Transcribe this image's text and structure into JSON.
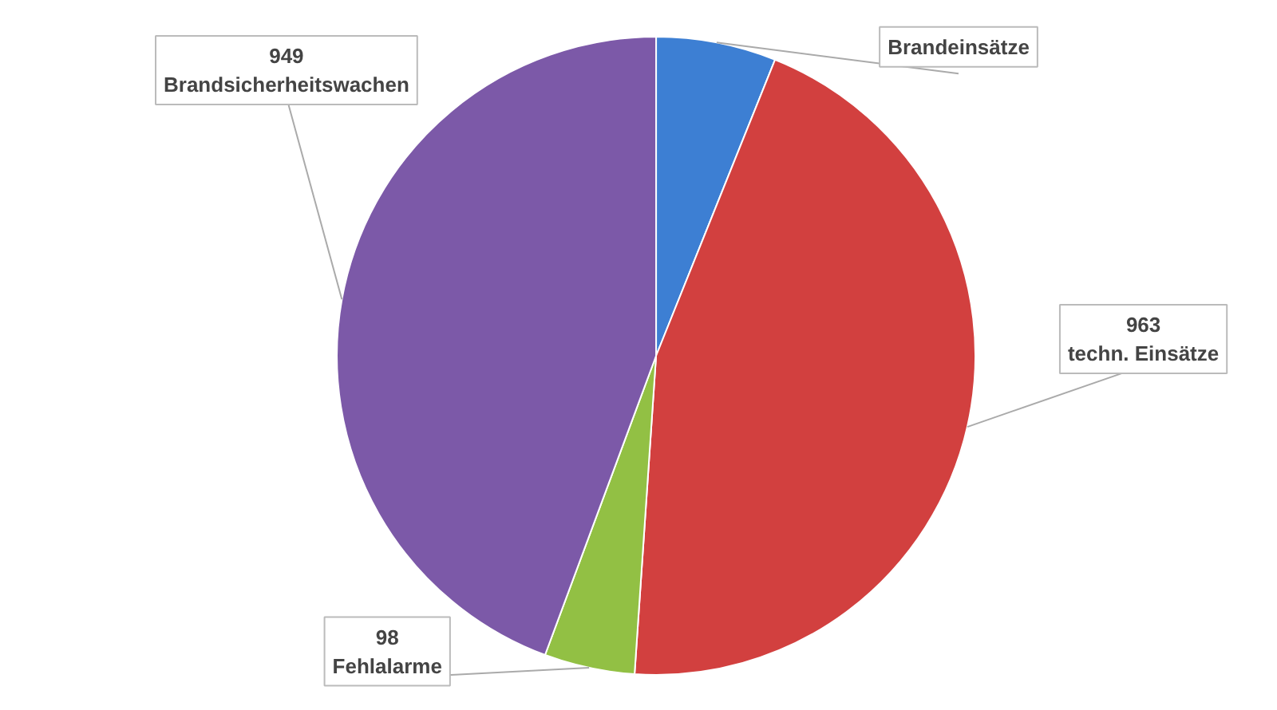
{
  "chart_data": {
    "type": "pie",
    "categories": [
      "Brandeinsätze",
      "techn. Einsätze",
      "Fehlalarme",
      "Brandsicherheitswachen"
    ],
    "values": [
      130,
      963,
      98,
      949
    ],
    "colors": [
      "#3d7fd3",
      "#d2403f",
      "#92c044",
      "#7c59a8"
    ],
    "value_labels": [
      null,
      "963",
      "98",
      "949"
    ]
  }
}
